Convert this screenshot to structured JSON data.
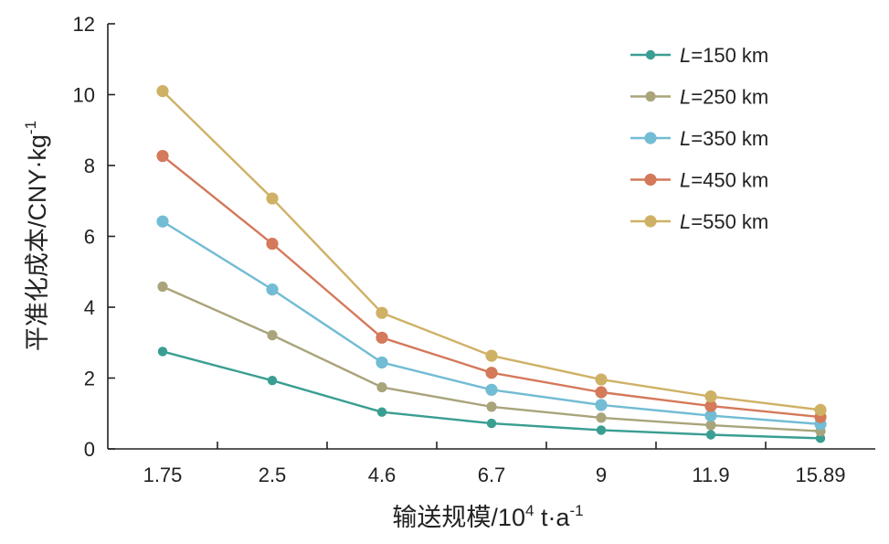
{
  "chart_data": {
    "type": "line",
    "categories": [
      "1.75",
      "2.5",
      "4.6",
      "6.7",
      "9",
      "11.9",
      "15.89"
    ],
    "xlabel": {
      "main": "输送规模/10",
      "sup": "4",
      "mid": " t·a",
      "sup2": "-1"
    },
    "ylabel": {
      "main": "平准化成本/CNY·kg",
      "sup": "-1"
    },
    "ylim": [
      0,
      12
    ],
    "yticks": [
      "0",
      "2",
      "4",
      "6",
      "8",
      "10",
      "12"
    ],
    "grid": false,
    "legend": "top-right",
    "series": [
      {
        "prefix": "L",
        "name": "=150 km",
        "color": "#3a9e92",
        "values": [
          2.75,
          1.93,
          1.04,
          0.72,
          0.53,
          0.4,
          0.3
        ]
      },
      {
        "prefix": "L",
        "name": "=250 km",
        "color": "#a9a47b",
        "values": [
          4.58,
          3.21,
          1.74,
          1.19,
          0.88,
          0.67,
          0.5
        ]
      },
      {
        "prefix": "L",
        "name": "=350 km",
        "color": "#72bcd4",
        "values": [
          6.42,
          4.5,
          2.44,
          1.67,
          1.24,
          0.94,
          0.7
        ]
      },
      {
        "prefix": "L",
        "name": "=450 km",
        "color": "#d4795a",
        "values": [
          8.27,
          5.79,
          3.14,
          2.15,
          1.6,
          1.21,
          0.9
        ]
      },
      {
        "prefix": "L",
        "name": "=550 km",
        "color": "#cfb165",
        "values": [
          10.1,
          7.07,
          3.84,
          2.63,
          1.96,
          1.48,
          1.1
        ]
      }
    ]
  }
}
